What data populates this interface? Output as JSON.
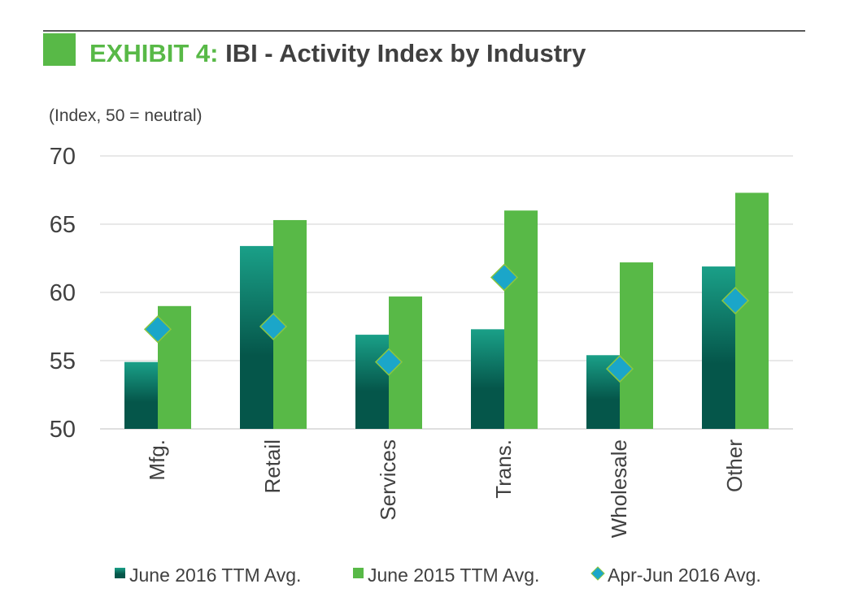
{
  "header": {
    "exhibit_label": "EXHIBIT 4:",
    "title_text": " IBI - Activity Index by Industry"
  },
  "colors": {
    "accent_green": "#58b947",
    "teal_top": "#1aa088",
    "teal_bottom": "#05564a",
    "diamond_fill": "#1ba6c9",
    "diamond_stroke": "#8cc63f",
    "grid": "#d0d0d0",
    "text": "#404040",
    "rule": "#595959"
  },
  "chart_data": {
    "type": "bar",
    "title": "EXHIBIT 4: IBI - Activity Index by Industry",
    "ylabel": "(Index, 50 = neutral)",
    "xlabel": "",
    "ylim": [
      50,
      70
    ],
    "yticks": [
      50,
      55,
      60,
      65,
      70
    ],
    "grid": true,
    "legend_position": "bottom",
    "categories": [
      "Mfg.",
      "Retail",
      "Services",
      "Trans.",
      "Wholesale",
      "Other"
    ],
    "series": [
      {
        "name": "June 2016 TTM Avg.",
        "kind": "bar",
        "values": [
          54.9,
          63.4,
          56.9,
          57.3,
          55.4,
          61.9
        ]
      },
      {
        "name": "June 2015 TTM Avg.",
        "kind": "bar",
        "values": [
          59.0,
          65.3,
          59.7,
          66.0,
          62.2,
          67.3
        ]
      },
      {
        "name": "Apr-Jun 2016 Avg.",
        "kind": "marker",
        "values": [
          57.3,
          57.5,
          54.9,
          61.1,
          54.4,
          59.4
        ]
      }
    ]
  }
}
